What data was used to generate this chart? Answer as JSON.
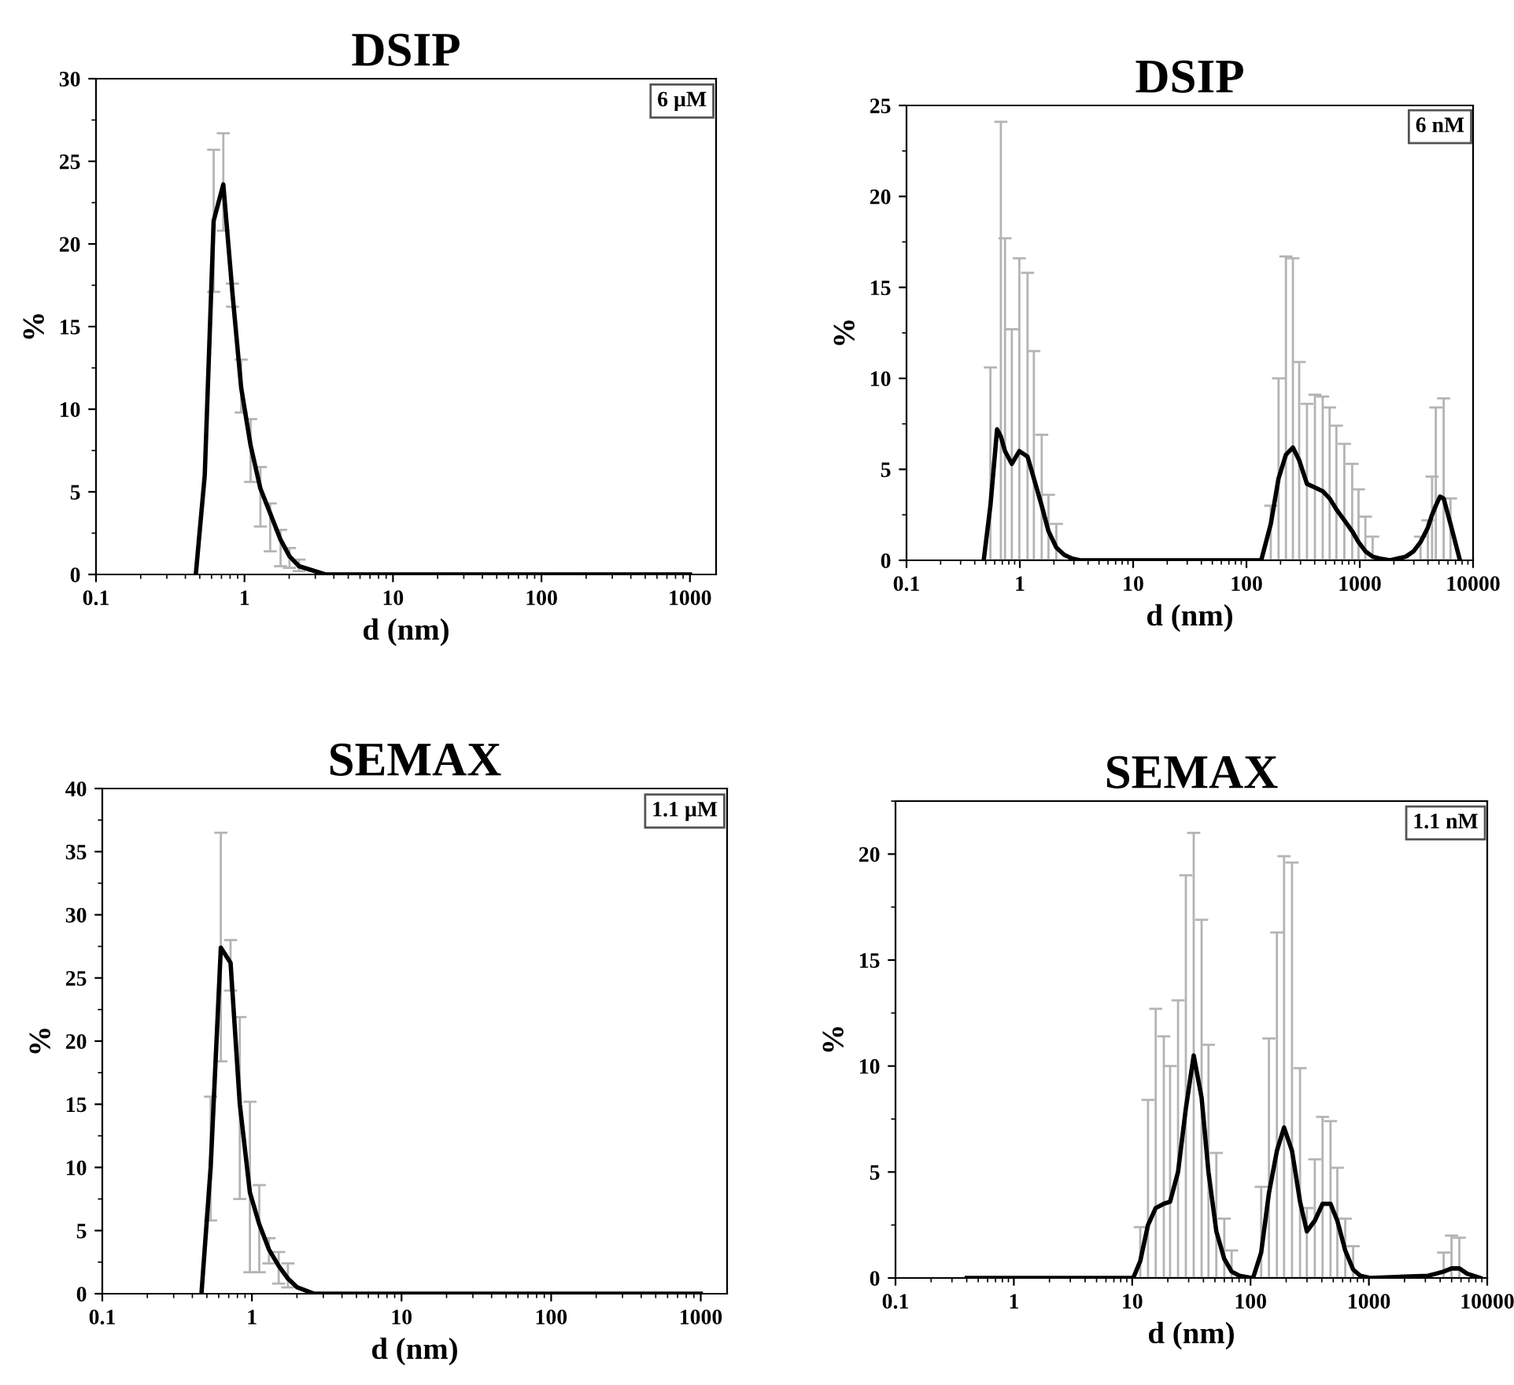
{
  "chart_data": [
    {
      "type": "line",
      "title": "DSIP",
      "xlabel": "d (nm)",
      "ylabel": "%",
      "annotations": [
        "6 µM"
      ],
      "log": "x",
      "xlim": [
        0.1,
        1500
      ],
      "xticks": [
        0.1,
        1,
        10,
        100,
        1000
      ],
      "ylim": [
        0,
        30
      ],
      "yticks": [
        0,
        5,
        10,
        15,
        20,
        25,
        30
      ],
      "grid": false,
      "legend": false,
      "marker": "none",
      "line_style": "solid",
      "series": [
        {
          "color": "#000000",
          "x": [
            0.47,
            0.54,
            0.62,
            0.72,
            0.83,
            0.95,
            1.1,
            1.28,
            1.49,
            1.75,
            2.01,
            2.33,
            3.5,
            1000
          ],
          "values": [
            0,
            6.0,
            21.4,
            23.6,
            17,
            11.3,
            7.8,
            5.2,
            3.7,
            2.1,
            1.1,
            0.5,
            0,
            0
          ],
          "errors": [
            null,
            null,
            [
              17.1,
              25.7
            ],
            [
              20.8,
              26.7
            ],
            [
              16.2,
              17.6
            ],
            [
              9.8,
              13.0
            ],
            [
              5.6,
              9.4
            ],
            [
              2.9,
              6.5
            ],
            [
              1.4,
              4.3
            ],
            [
              0.5,
              2.7
            ],
            [
              0.4,
              1.6
            ],
            [
              0.2,
              0.9
            ],
            null,
            null
          ]
        }
      ]
    },
    {
      "type": "line",
      "title": "DSIP",
      "xlabel": "d (nm)",
      "ylabel": "%",
      "annotations": [
        "6 nM"
      ],
      "log": "x",
      "xlim": [
        0.1,
        10000
      ],
      "xticks": [
        0.1,
        1,
        10,
        100,
        1000,
        10000
      ],
      "ylim": [
        0,
        25
      ],
      "yticks": [
        0,
        5,
        10,
        15,
        20,
        25
      ],
      "grid": false,
      "legend": false,
      "marker": "none",
      "line_style": "solid",
      "series": [
        {
          "color": "#000000",
          "x": [
            0.48,
            0.55,
            0.63,
            0.68,
            0.74,
            0.85,
            0.99,
            1.17,
            1.33,
            1.56,
            1.79,
            2.1,
            2.46,
            2.89,
            3.4,
            135,
            164,
            192,
            223,
            257,
            292,
            342,
            402,
            471,
            542,
            622,
            731,
            857,
            975,
            1120,
            1300,
            1493,
            1850,
            2547,
            2990,
            3436,
            3990,
            4345,
            4690,
            5100,
            5500,
            6320,
            7660
          ],
          "values": [
            0,
            3.0,
            7.2,
            6.8,
            6.0,
            5.3,
            6.0,
            5.7,
            4.5,
            3.0,
            1.6,
            0.7,
            0.3,
            0.1,
            0,
            0,
            2.0,
            4.5,
            5.8,
            6.2,
            5.5,
            4.2,
            4.0,
            3.8,
            3.4,
            2.8,
            2.2,
            1.6,
            1.0,
            0.5,
            0.2,
            0.1,
            0,
            0.2,
            0.5,
            1.0,
            1.8,
            2.5,
            3.0,
            3.5,
            3.4,
            2.0,
            0
          ],
          "errors": [
            null,
            [
              0,
              10.6
            ],
            null,
            [
              0,
              24.1
            ],
            [
              0,
              17.7
            ],
            [
              0,
              12.7
            ],
            [
              0,
              16.6
            ],
            [
              0,
              15.8
            ],
            [
              0,
              11.5
            ],
            [
              0,
              6.9
            ],
            [
              0,
              3.6
            ],
            [
              0,
              2.0
            ],
            null,
            null,
            null,
            null,
            [
              0,
              3.0
            ],
            [
              0,
              10.0
            ],
            [
              0,
              16.7
            ],
            [
              0,
              16.6
            ],
            [
              0,
              10.9
            ],
            [
              0,
              8.6
            ],
            [
              0,
              9.1
            ],
            [
              0,
              9.0
            ],
            [
              0,
              8.4
            ],
            [
              0,
              7.4
            ],
            [
              0,
              6.4
            ],
            [
              0,
              5.3
            ],
            [
              0,
              3.9
            ],
            [
              0,
              2.4
            ],
            [
              0,
              1.3
            ],
            null,
            null,
            null,
            null,
            [
              0,
              1.3
            ],
            [
              0,
              2.2
            ],
            [
              0,
              4.6
            ],
            [
              0,
              8.4
            ],
            null,
            [
              0,
              8.9
            ],
            [
              0,
              3.4
            ],
            null
          ]
        }
      ]
    },
    {
      "type": "line",
      "title": "SEMAX",
      "xlabel": "d (nm)",
      "ylabel": "%",
      "annotations": [
        "1.1 µM"
      ],
      "log": "x",
      "xlim": [
        0.1,
        1500
      ],
      "xticks": [
        0.1,
        1,
        10,
        100,
        1000
      ],
      "ylim": [
        0,
        40
      ],
      "yticks": [
        0,
        5,
        10,
        15,
        20,
        25,
        30,
        35,
        40
      ],
      "grid": false,
      "legend": false,
      "marker": "none",
      "line_style": "solid",
      "series": [
        {
          "color": "#000000",
          "x": [
            0.46,
            0.53,
            0.62,
            0.72,
            0.83,
            0.97,
            1.12,
            1.3,
            1.51,
            1.74,
            2.01,
            2.61,
            1000
          ],
          "values": [
            0,
            10,
            27.4,
            26.2,
            15,
            8,
            5.5,
            3.5,
            2.2,
            1.2,
            0.5,
            0,
            0
          ],
          "errors": [
            null,
            [
              5.8,
              15.6
            ],
            [
              18.4,
              36.5
            ],
            [
              24,
              28
            ],
            [
              7.5,
              21.9
            ],
            [
              1.7,
              15.2
            ],
            [
              1.7,
              8.6
            ],
            [
              2.4,
              4.4
            ],
            [
              0.8,
              3.3
            ],
            [
              0.5,
              2.4
            ],
            null,
            null,
            null
          ]
        }
      ]
    },
    {
      "type": "line",
      "title": "SEMAX",
      "xlabel": "d (nm)",
      "ylabel": "%",
      "annotations": [
        "1.1 nM"
      ],
      "log": "x",
      "xlim": [
        0.1,
        10000
      ],
      "xticks": [
        0.1,
        1,
        10,
        100,
        1000,
        10000
      ],
      "ylim": [
        0,
        22.5
      ],
      "yticks": [
        0,
        5,
        10,
        15,
        20
      ],
      "grid": false,
      "legend": false,
      "marker": "none",
      "line_style": "solid",
      "series": [
        {
          "color": "#000000",
          "x": [
            0.4,
            10.2,
            11.7,
            13.6,
            15.8,
            18.5,
            20.9,
            24.4,
            28.4,
            33.1,
            38.6,
            44.1,
            51.4,
            60.0,
            69.2,
            80.7,
            102,
            105,
            123,
            143,
            167,
            192,
            224,
            262,
            299,
            349,
            406,
            474,
            541,
            631,
            736,
            849,
            1021,
            3150,
            3670,
            4280,
            4990,
            5810,
            6780,
            8750
          ],
          "values": [
            0,
            0,
            0.8,
            2.5,
            3.3,
            3.5,
            3.6,
            5.0,
            8.0,
            10.5,
            8.5,
            5.0,
            2.2,
            0.9,
            0.3,
            0.1,
            0,
            0,
            1.2,
            4.0,
            6.0,
            7.1,
            6.0,
            3.6,
            2.2,
            2.7,
            3.5,
            3.5,
            2.7,
            1.3,
            0.4,
            0.1,
            0,
            0.1,
            0.2,
            0.3,
            0.45,
            0.45,
            0.2,
            0
          ],
          "errors": [
            null,
            null,
            [
              0,
              2.4
            ],
            [
              0,
              8.4
            ],
            [
              0,
              12.7
            ],
            [
              0,
              11.4
            ],
            [
              0,
              10.0
            ],
            [
              0,
              13.1
            ],
            [
              0,
              19.0
            ],
            [
              0,
              21.0
            ],
            [
              0,
              16.9
            ],
            [
              0,
              11.0
            ],
            [
              0,
              5.9
            ],
            [
              0,
              2.8
            ],
            [
              0,
              1.3
            ],
            null,
            null,
            null,
            [
              0,
              4.3
            ],
            [
              0,
              11.3
            ],
            [
              0,
              16.3
            ],
            [
              0,
              19.9
            ],
            [
              0,
              19.6
            ],
            [
              0,
              9.9
            ],
            [
              0,
              3.3
            ],
            [
              0,
              5.6
            ],
            [
              0,
              7.6
            ],
            [
              0,
              7.4
            ],
            [
              0,
              5.2
            ],
            [
              0,
              2.8
            ],
            [
              0,
              1.5
            ],
            null,
            null,
            null,
            null,
            [
              0,
              1.2
            ],
            [
              0,
              2.0
            ],
            [
              0,
              1.9
            ],
            null,
            null
          ]
        }
      ]
    }
  ]
}
